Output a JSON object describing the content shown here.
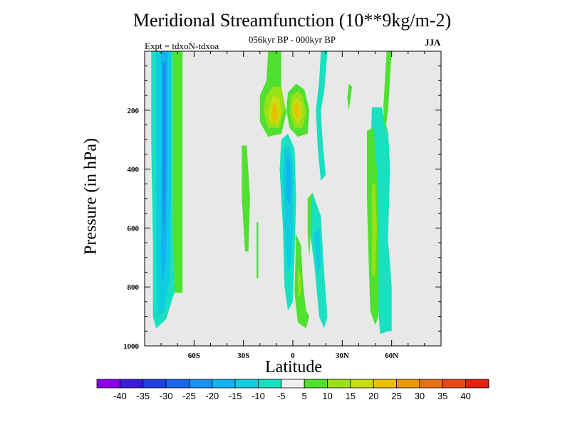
{
  "header": {
    "title": "Meridional Streamfunction (10**9kg/m-2)",
    "subtitle": "056kyr BP - 000kyr BP",
    "expt": "Expt = tdxoN-tdxoa",
    "season": "JJA"
  },
  "chart_data": {
    "type": "heatmap",
    "title": "Meridional Streamfunction (10**9kg/m-2)",
    "subtitle": "056kyr BP - 000kyr BP",
    "xlabel": "Latitude",
    "ylabel": "Pressure (in hPa)",
    "xlim": [
      -90,
      90
    ],
    "ylim": [
      1000,
      0
    ],
    "x_ticks": [
      -60,
      -30,
      0,
      30,
      60
    ],
    "x_tick_labels": [
      "60S",
      "30S",
      "0",
      "30N",
      "60N"
    ],
    "y_ticks": [
      200,
      400,
      600,
      800,
      1000
    ],
    "y_tick_labels": [
      "200",
      "400",
      "600",
      "800",
      "1000"
    ],
    "colorbar": {
      "labels": [
        "-40",
        "-35",
        "-30",
        "-25",
        "-20",
        "-15",
        "-10",
        "-5",
        "5",
        "10",
        "15",
        "20",
        "25",
        "30",
        "35",
        "40"
      ],
      "colors": [
        "#8a00e6",
        "#3a1cd8",
        "#2040e0",
        "#1a66e8",
        "#1890f0",
        "#10b4f0",
        "#10cce0",
        "#18e0c0",
        "#f0f0f0",
        "#50e030",
        "#98e018",
        "#c8dc10",
        "#e8c000",
        "#e89800",
        "#e87010",
        "#e84818",
        "#e02010"
      ]
    },
    "regions": [
      {
        "name": "southern-band-outer",
        "level": -5,
        "color": "#18e0c0",
        "points": [
          [
            -86,
            0
          ],
          [
            -73,
            0
          ],
          [
            -73,
            570
          ],
          [
            -72,
            820
          ],
          [
            -77,
            910
          ],
          [
            -83,
            940
          ],
          [
            -85,
            900
          ],
          [
            -85,
            650
          ],
          [
            -86,
            300
          ]
        ]
      },
      {
        "name": "southern-band-positive",
        "level": 5,
        "color": "#50e030",
        "points": [
          [
            -73,
            0
          ],
          [
            -67,
            0
          ],
          [
            -67,
            820
          ],
          [
            -72,
            820
          ],
          [
            -73,
            570
          ]
        ]
      },
      {
        "name": "southern-band-inner",
        "level": -10,
        "color": "#10cce0",
        "points": [
          [
            -83,
            0
          ],
          [
            -74,
            0
          ],
          [
            -74,
            500
          ],
          [
            -75,
            780
          ],
          [
            -78,
            880
          ],
          [
            -82,
            900
          ],
          [
            -83,
            700
          ]
        ]
      },
      {
        "name": "southern-band-core",
        "level": -15,
        "color": "#10b4f0",
        "points": [
          [
            -80,
            0
          ],
          [
            -76,
            0
          ],
          [
            -76,
            400
          ],
          [
            -77,
            700
          ],
          [
            -79,
            790
          ],
          [
            -80,
            700
          ]
        ]
      },
      {
        "name": "southern-band-min",
        "level": -20,
        "color": "#1890f0",
        "points": [
          [
            -79,
            40
          ],
          [
            -77,
            40
          ],
          [
            -77,
            400
          ],
          [
            -78,
            620
          ],
          [
            -79,
            500
          ]
        ]
      },
      {
        "name": "south-subtropic-strip",
        "level": 5,
        "color": "#50e030",
        "points": [
          [
            -31,
            320
          ],
          [
            -28,
            320
          ],
          [
            -26,
            500
          ],
          [
            -27,
            680
          ],
          [
            -29,
            680
          ],
          [
            -31,
            500
          ]
        ]
      },
      {
        "name": "south-thin-strip",
        "level": 5,
        "color": "#50e030",
        "points": [
          [
            -22,
            580
          ],
          [
            -21,
            580
          ],
          [
            -21,
            770
          ],
          [
            -22,
            770
          ]
        ]
      },
      {
        "name": "left-cell-green",
        "level": 5,
        "color": "#50e030",
        "points": [
          [
            -15,
            0
          ],
          [
            -7,
            0
          ],
          [
            -7,
            120
          ],
          [
            -4,
            210
          ],
          [
            -7,
            280
          ],
          [
            -15,
            290
          ],
          [
            -20,
            240
          ],
          [
            -20,
            150
          ],
          [
            -16,
            100
          ]
        ]
      },
      {
        "name": "left-cell-10",
        "level": 10,
        "color": "#98e018",
        "points": [
          [
            -12,
            120
          ],
          [
            -7,
            120
          ],
          [
            -5,
            190
          ],
          [
            -8,
            260
          ],
          [
            -15,
            260
          ],
          [
            -18,
            200
          ],
          [
            -16,
            150
          ]
        ]
      },
      {
        "name": "left-cell-15",
        "level": 15,
        "color": "#c8dc10",
        "points": [
          [
            -12,
            150
          ],
          [
            -8,
            160
          ],
          [
            -7,
            210
          ],
          [
            -9,
            250
          ],
          [
            -14,
            240
          ],
          [
            -15,
            200
          ]
        ]
      },
      {
        "name": "left-cell-20",
        "level": 20,
        "color": "#e8c000",
        "points": [
          [
            -12,
            180
          ],
          [
            -10,
            180
          ],
          [
            -9,
            220
          ],
          [
            -11,
            240
          ],
          [
            -13,
            220
          ]
        ]
      },
      {
        "name": "right-cell-green",
        "level": 5,
        "color": "#50e030",
        "points": [
          [
            -3,
            140
          ],
          [
            2,
            110
          ],
          [
            7,
            130
          ],
          [
            10,
            200
          ],
          [
            9,
            280
          ],
          [
            3,
            290
          ],
          [
            -2,
            260
          ],
          [
            -4,
            200
          ]
        ]
      },
      {
        "name": "right-cell-10",
        "level": 10,
        "color": "#98e018",
        "points": [
          [
            -1,
            150
          ],
          [
            3,
            135
          ],
          [
            6,
            150
          ],
          [
            8,
            210
          ],
          [
            6,
            260
          ],
          [
            1,
            260
          ],
          [
            -2,
            210
          ]
        ]
      },
      {
        "name": "right-cell-15",
        "level": 15,
        "color": "#c8dc10",
        "points": [
          [
            0,
            170
          ],
          [
            3,
            160
          ],
          [
            5,
            175
          ],
          [
            6,
            220
          ],
          [
            3,
            245
          ],
          [
            0,
            220
          ]
        ]
      },
      {
        "name": "right-cell-20",
        "level": 20,
        "color": "#e8c000",
        "points": [
          [
            1,
            180
          ],
          [
            3,
            175
          ],
          [
            4,
            195
          ],
          [
            4,
            220
          ],
          [
            2,
            225
          ],
          [
            1,
            200
          ]
        ]
      },
      {
        "name": "equatorial-negative",
        "level": -5,
        "color": "#18e0c0",
        "points": [
          [
            -7,
            300
          ],
          [
            -3,
            280
          ],
          [
            1,
            330
          ],
          [
            2,
            500
          ],
          [
            1,
            700
          ],
          [
            0,
            850
          ],
          [
            -3,
            880
          ],
          [
            -5,
            800
          ],
          [
            -6,
            600
          ],
          [
            -8,
            400
          ]
        ]
      },
      {
        "name": "equatorial-negative-10",
        "level": -10,
        "color": "#10cce0",
        "points": [
          [
            -5,
            330
          ],
          [
            -2,
            320
          ],
          [
            0,
            400
          ],
          [
            0,
            600
          ],
          [
            -1,
            720
          ],
          [
            -3,
            750
          ],
          [
            -5,
            600
          ],
          [
            -6,
            420
          ]
        ]
      },
      {
        "name": "equatorial-negative-15",
        "level": -15,
        "color": "#10b4f0",
        "points": [
          [
            -4,
            360
          ],
          [
            -2,
            360
          ],
          [
            -1,
            450
          ],
          [
            -2,
            520
          ],
          [
            -4,
            500
          ]
        ]
      },
      {
        "name": "equatorial-low-green",
        "level": 5,
        "color": "#50e030",
        "points": [
          [
            2,
            620
          ],
          [
            5,
            660
          ],
          [
            6,
            780
          ],
          [
            8,
            880
          ],
          [
            10,
            900
          ],
          [
            8,
            940
          ],
          [
            3,
            920
          ],
          [
            1,
            820
          ]
        ]
      },
      {
        "name": "equatorial-low-10",
        "level": 10,
        "color": "#98e018",
        "points": [
          [
            3,
            740
          ],
          [
            5,
            760
          ],
          [
            5,
            820
          ],
          [
            3,
            840
          ]
        ]
      },
      {
        "name": "top-eq-strip",
        "level": 5,
        "color": "#50e030",
        "points": [
          [
            -15,
            0
          ],
          [
            -11,
            0
          ],
          [
            -11,
            100
          ],
          [
            -15,
            100
          ]
        ]
      },
      {
        "name": "top-mid-strip",
        "level": -5,
        "color": "#18e0c0",
        "points": [
          [
            17,
            0
          ],
          [
            21,
            0
          ],
          [
            19,
            140
          ],
          [
            17,
            200
          ],
          [
            18,
            300
          ],
          [
            20,
            420
          ],
          [
            17,
            440
          ],
          [
            15,
            320
          ],
          [
            14,
            200
          ],
          [
            16,
            100
          ]
        ]
      },
      {
        "name": "north-subtropic-cyan",
        "level": -5,
        "color": "#18e0c0",
        "points": [
          [
            9,
            520
          ],
          [
            12,
            480
          ],
          [
            17,
            560
          ],
          [
            19,
            750
          ],
          [
            21,
            900
          ],
          [
            19,
            940
          ],
          [
            16,
            900
          ],
          [
            13,
            720
          ],
          [
            10,
            600
          ]
        ]
      },
      {
        "name": "north-subtropic-10",
        "level": -10,
        "color": "#10cce0",
        "points": [
          [
            13,
            620
          ],
          [
            16,
            600
          ],
          [
            17,
            720
          ],
          [
            15,
            760
          ],
          [
            14,
            700
          ]
        ]
      },
      {
        "name": "north-subtropic-green",
        "level": 5,
        "color": "#50e030",
        "points": [
          [
            9,
            500
          ],
          [
            12,
            480
          ],
          [
            11,
            600
          ],
          [
            10,
            700
          ],
          [
            9,
            620
          ]
        ]
      },
      {
        "name": "small-upper-blob",
        "level": 5,
        "color": "#50e030",
        "points": [
          [
            34,
            110
          ],
          [
            36,
            120
          ],
          [
            35,
            160
          ],
          [
            34,
            200
          ],
          [
            33,
            160
          ]
        ]
      },
      {
        "name": "north-band-cyan",
        "level": -5,
        "color": "#18e0c0",
        "points": [
          [
            48,
            190
          ],
          [
            54,
            190
          ],
          [
            58,
            280
          ],
          [
            59,
            400
          ],
          [
            58,
            600
          ],
          [
            57,
            800
          ],
          [
            58,
            950
          ],
          [
            53,
            960
          ],
          [
            51,
            800
          ],
          [
            49,
            600
          ],
          [
            47,
            400
          ]
        ]
      },
      {
        "name": "north-band-green",
        "level": 5,
        "color": "#50e030",
        "points": [
          [
            45,
            270
          ],
          [
            49,
            260
          ],
          [
            51,
            400
          ],
          [
            52,
            600
          ],
          [
            52,
            900
          ],
          [
            50,
            930
          ],
          [
            47,
            880
          ],
          [
            46,
            700
          ],
          [
            45,
            500
          ]
        ]
      },
      {
        "name": "north-band-10",
        "level": 10,
        "color": "#98e018",
        "points": [
          [
            48,
            450
          ],
          [
            50,
            450
          ],
          [
            51,
            600
          ],
          [
            50,
            760
          ],
          [
            48,
            760
          ],
          [
            48,
            600
          ]
        ]
      },
      {
        "name": "north-top-strip",
        "level": 5,
        "color": "#50e030",
        "points": [
          [
            57,
            0
          ],
          [
            60,
            0
          ],
          [
            59,
            90
          ],
          [
            58,
            190
          ],
          [
            56,
            280
          ],
          [
            55,
            190
          ],
          [
            56,
            90
          ]
        ]
      },
      {
        "name": "north-low-cyan",
        "level": -5,
        "color": "#18e0c0",
        "points": [
          [
            56,
            680
          ],
          [
            58,
            650
          ],
          [
            60,
            800
          ],
          [
            60,
            950
          ],
          [
            56,
            950
          ],
          [
            55,
            800
          ]
        ]
      }
    ]
  }
}
